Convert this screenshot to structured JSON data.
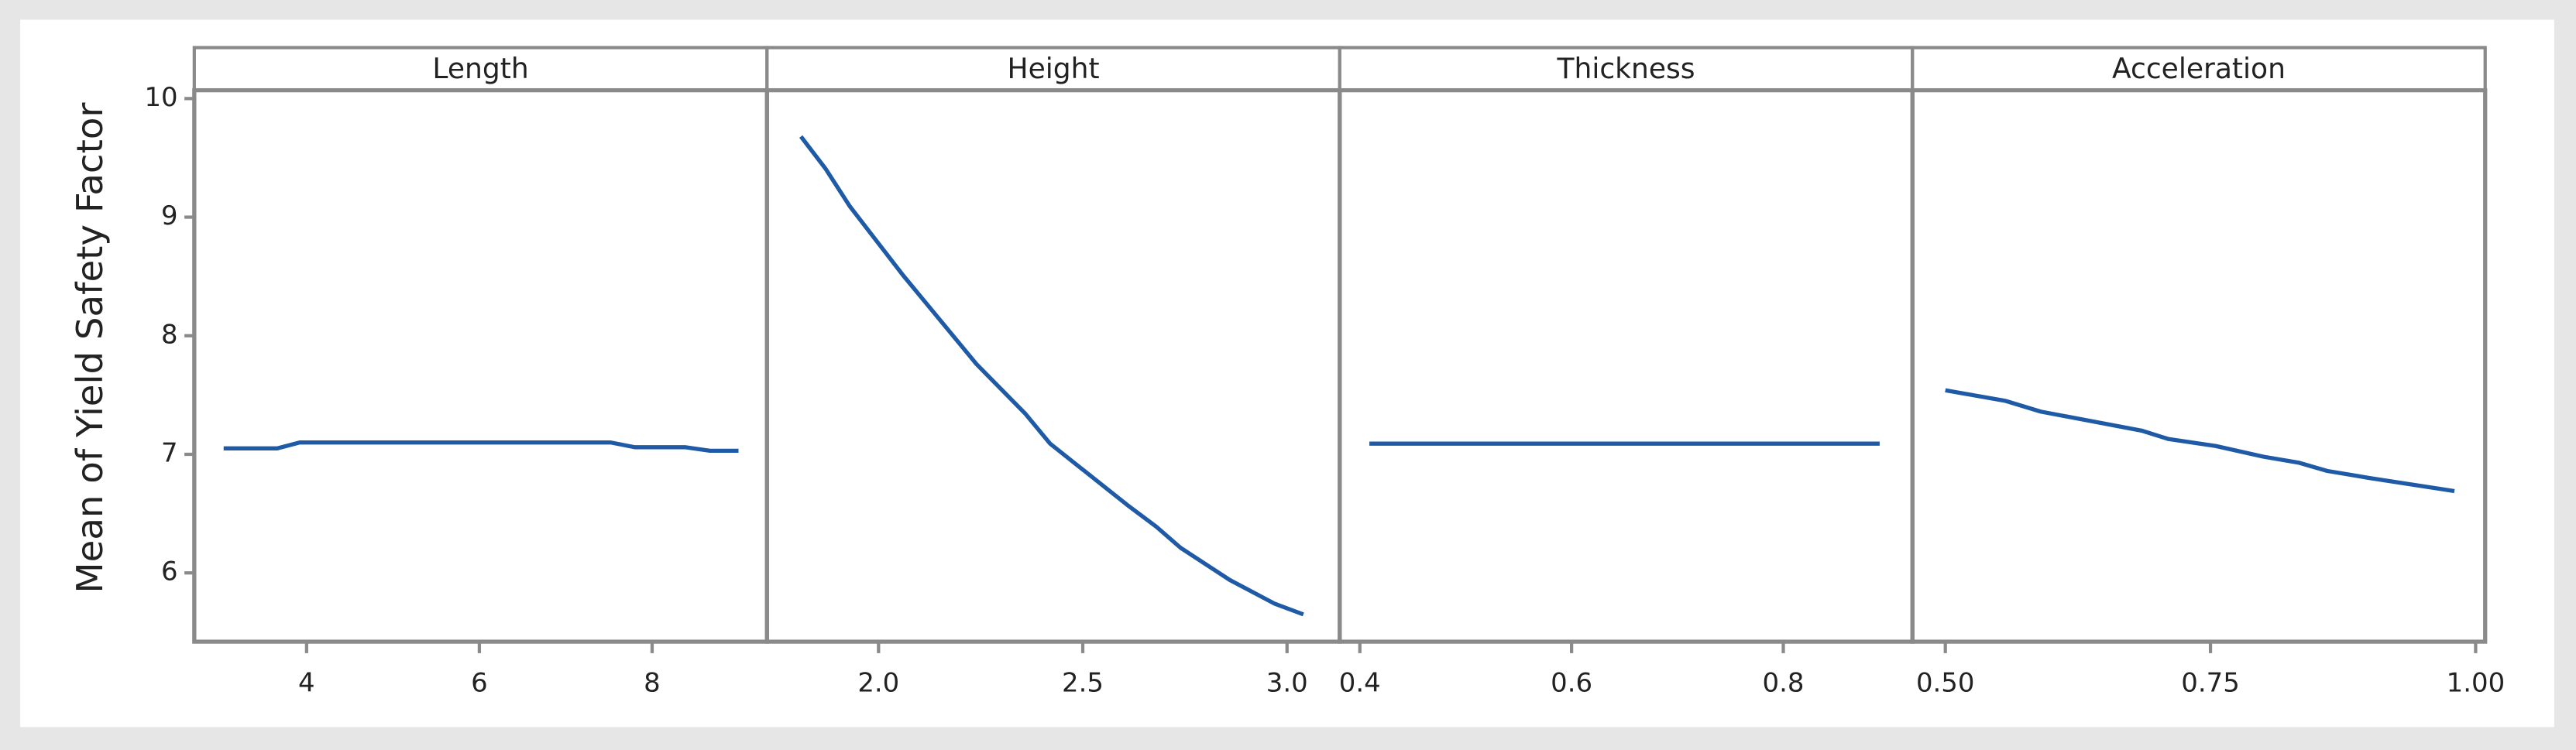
{
  "chart_data": {
    "type": "line",
    "ylabel": "Mean of Yield Safety Factor",
    "color": "#1f5aa6",
    "ylim": [
      5.42,
      10.07
    ],
    "yticks": [
      6,
      7,
      8,
      9,
      10
    ],
    "panels": [
      {
        "title": "Length",
        "xlim": [
          2.7,
          9.33
        ],
        "xticks": [
          4,
          6,
          8
        ],
        "x": [
          3.04,
          3.66,
          3.92,
          7.52,
          7.8,
          8.38,
          8.67,
          9.0
        ],
        "values": [
          7.05,
          7.05,
          7.1,
          7.1,
          7.06,
          7.06,
          7.03,
          7.03
        ]
      },
      {
        "title": "Height",
        "xlim": [
          1.727,
          3.129
        ],
        "xticks": [
          {
            "value": 2,
            "label": "2.0"
          },
          2.5,
          {
            "value": 3,
            "label": "3.0"
          }
        ],
        "x": [
          1.81,
          1.87,
          1.93,
          2.06,
          2.24,
          2.36,
          2.42,
          2.61,
          2.68,
          2.74,
          2.86,
          2.97,
          3.04
        ],
        "values": [
          9.68,
          9.41,
          9.09,
          8.51,
          7.76,
          7.34,
          7.09,
          6.57,
          6.39,
          6.21,
          5.94,
          5.74,
          5.65
        ]
      },
      {
        "title": "Thickness",
        "xlim": [
          0.381,
          0.922
        ],
        "xticks": [
          0.4,
          0.6,
          0.8
        ],
        "x": [
          0.409,
          0.891
        ],
        "values": [
          7.09,
          7.09
        ]
      },
      {
        "title": "Acceleration",
        "xlim": [
          0.469,
          1.009
        ],
        "xticks": [
          {
            "value": 0.5,
            "label": "0.50"
          },
          0.75,
          {
            "value": 1,
            "label": "1.00"
          }
        ],
        "x": [
          0.5,
          0.557,
          0.59,
          0.685,
          0.71,
          0.755,
          0.8,
          0.833,
          0.86,
          0.9,
          0.98
        ],
        "values": [
          7.54,
          7.45,
          7.36,
          7.2,
          7.13,
          7.07,
          6.98,
          6.93,
          6.86,
          6.8,
          6.69
        ]
      }
    ]
  }
}
